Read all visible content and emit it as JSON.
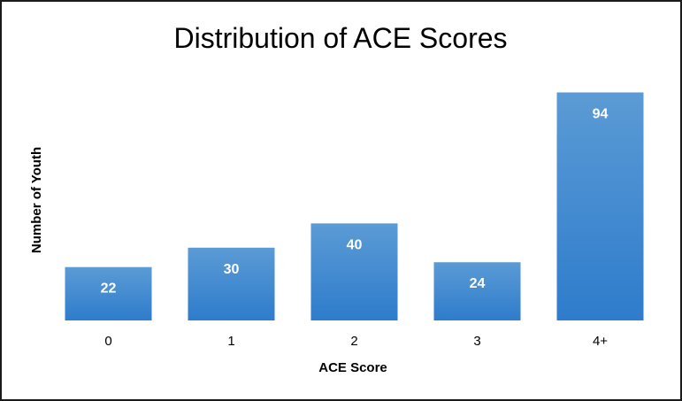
{
  "chart_data": {
    "type": "bar",
    "title": "Distribution of ACE Scores",
    "xlabel": "ACE Score",
    "ylabel": "Number of Youth",
    "categories": [
      "0",
      "1",
      "2",
      "3",
      "4+"
    ],
    "values": [
      22,
      30,
      40,
      24,
      94
    ],
    "data_labels": [
      "22",
      "30",
      "40",
      "24",
      "94"
    ],
    "ylim": [
      0,
      100
    ],
    "grid": false,
    "legend": "none",
    "bar_color_top": "#5b9bd5",
    "bar_color_bottom": "#2e7ccc"
  }
}
